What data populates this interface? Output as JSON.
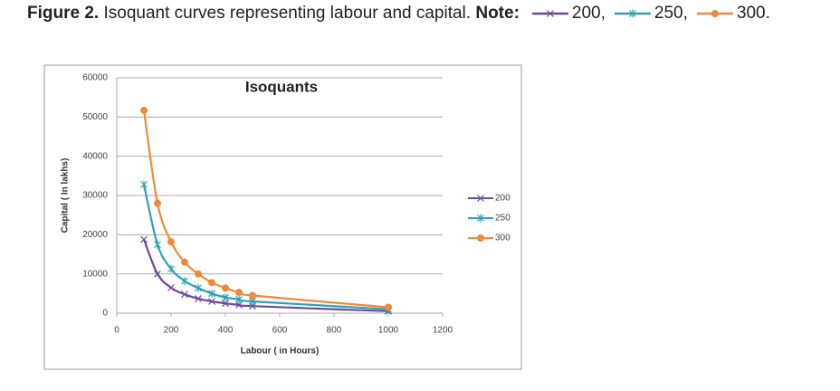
{
  "caption": {
    "label": "Figure 2.",
    "text": "Isoquant curves representing labour and capital.",
    "note": "Note:",
    "keys": [
      "200,",
      "250,",
      "300."
    ]
  },
  "chart_data": {
    "type": "line",
    "title": "Isoquants",
    "x_label": "Labour ( in Hours)",
    "y_label": "Capital ( In lakhs)",
    "xlim": [
      0,
      1200
    ],
    "xticks": [
      0,
      200,
      400,
      600,
      800,
      1000,
      1200
    ],
    "ylim": [
      0,
      60000
    ],
    "yticks": [
      0,
      10000,
      20000,
      30000,
      40000,
      50000,
      60000
    ],
    "grid": true,
    "legend": "right",
    "series": [
      {
        "name": "200",
        "color": "#6a4a9c",
        "marker": "x",
        "x": [
          100,
          150,
          200,
          250,
          300,
          350,
          400,
          450,
          500,
          1000
        ],
        "values": [
          18800,
          10000,
          6500,
          4800,
          3700,
          3000,
          2500,
          2100,
          1800,
          500
        ]
      },
      {
        "name": "250",
        "color": "#31a0b8",
        "marker": "star",
        "x": [
          100,
          150,
          200,
          250,
          300,
          350,
          400,
          450,
          500,
          1000
        ],
        "values": [
          32800,
          17500,
          11300,
          8200,
          6400,
          5000,
          4000,
          3500,
          3000,
          1000
        ]
      },
      {
        "name": "300",
        "color": "#ee8a3a",
        "marker": "circle",
        "x": [
          100,
          150,
          200,
          250,
          300,
          350,
          400,
          450,
          500,
          1000
        ],
        "values": [
          51700,
          28000,
          18200,
          13000,
          10000,
          7800,
          6400,
          5300,
          4500,
          1500
        ]
      }
    ]
  }
}
